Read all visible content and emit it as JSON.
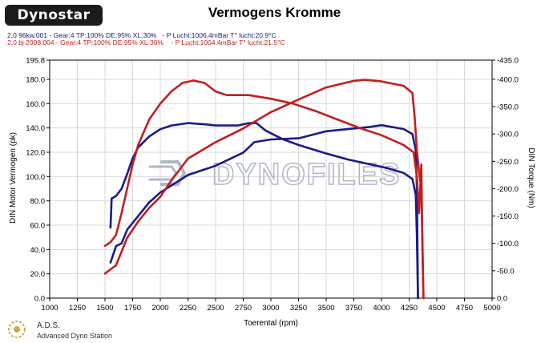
{
  "header": {
    "logo_text": "Dynostar",
    "title": "Vermogens Kromme",
    "run1": "2,0 96kw.001 - Gear:4 TP:100% DE:95% XL:30%   - P Lucht:1006.4mBar T° lucht:20.9°C",
    "run2": "2,0 bj 2008.004 - Gear:4 TP:100% DE:95% XL:30%    - P Lucht:1004.4mBar T° lucht:21.5°C"
  },
  "footer": {
    "line1": "A.D.S.",
    "line2": "Advanced Dyno Station"
  },
  "watermark": "DYNOFILES",
  "colors": {
    "run1": "#1a1a8a",
    "run2": "#c41e1e",
    "grid": "#d8d8d8",
    "watermark": "#b0b6c8"
  },
  "chart_data": {
    "type": "line",
    "title": "Vermogens Kromme",
    "xlabel": "Toerental (rpm)",
    "ylabel": "DIN Motor Vermogen (pk)",
    "y2label": "DIN Torque (Nm)",
    "xlim": [
      1000,
      5000
    ],
    "ylim": [
      0,
      195.8
    ],
    "y2lim": [
      0,
      435
    ],
    "x_ticks": [
      "1000",
      "1250",
      "1500",
      "1750",
      "2000",
      "2250",
      "2500",
      "2750",
      "3000",
      "3250",
      "3500",
      "3750",
      "4000",
      "4250",
      "4500",
      "4750",
      "5000"
    ],
    "y_ticks": [
      "0.0",
      "20.0",
      "40.0",
      "60.0",
      "80.0",
      "100.0",
      "120.0",
      "140.0",
      "160.0",
      "180.0",
      "195.8"
    ],
    "y2_ticks": [
      "0.0",
      "-50.0",
      "-100.0",
      "-150.0",
      "-200.0",
      "-250.0",
      "-300.0",
      "-350.0",
      "-400.0",
      "-435.0"
    ],
    "grid": true,
    "series": [
      {
        "name": "2,0 96kw.001",
        "quantity": "power",
        "axis": "left",
        "color": "#1a1a8a",
        "points": [
          [
            1550,
            58
          ],
          [
            1560,
            82
          ],
          [
            1600,
            84
          ],
          [
            1650,
            90
          ],
          [
            1700,
            102
          ],
          [
            1750,
            115
          ],
          [
            1800,
            124
          ],
          [
            1900,
            133
          ],
          [
            2000,
            139
          ],
          [
            2100,
            142
          ],
          [
            2250,
            144
          ],
          [
            2400,
            143
          ],
          [
            2500,
            142
          ],
          [
            2600,
            142
          ],
          [
            2700,
            142
          ],
          [
            2800,
            144
          ],
          [
            2870,
            144
          ],
          [
            2950,
            138
          ],
          [
            3100,
            131
          ],
          [
            3250,
            126
          ],
          [
            3500,
            119
          ],
          [
            3700,
            114
          ],
          [
            3900,
            110
          ],
          [
            4050,
            107
          ],
          [
            4200,
            103
          ],
          [
            4280,
            98
          ],
          [
            4310,
            85
          ],
          [
            4320,
            50
          ],
          [
            4330,
            0
          ]
        ]
      },
      {
        "name": "2,0 96kw.001",
        "quantity": "torque",
        "axis": "right",
        "color": "#1a1a8a",
        "points": [
          [
            1550,
            65
          ],
          [
            1600,
            95
          ],
          [
            1650,
            100
          ],
          [
            1700,
            125
          ],
          [
            1800,
            150
          ],
          [
            1900,
            175
          ],
          [
            2000,
            193
          ],
          [
            2250,
            225
          ],
          [
            2500,
            242
          ],
          [
            2750,
            266
          ],
          [
            2850,
            285
          ],
          [
            3000,
            290
          ],
          [
            3250,
            292
          ],
          [
            3500,
            305
          ],
          [
            3750,
            310
          ],
          [
            3900,
            313
          ],
          [
            4000,
            316
          ],
          [
            4200,
            309
          ],
          [
            4280,
            300
          ],
          [
            4310,
            270
          ],
          [
            4320,
            200
          ],
          [
            4330,
            0
          ]
        ]
      },
      {
        "name": "2,0 bj 2008.004",
        "quantity": "power",
        "axis": "left",
        "color": "#c41e1e",
        "points": [
          [
            1500,
            43
          ],
          [
            1550,
            46
          ],
          [
            1600,
            52
          ],
          [
            1650,
            70
          ],
          [
            1700,
            90
          ],
          [
            1750,
            110
          ],
          [
            1800,
            126
          ],
          [
            1900,
            147
          ],
          [
            2000,
            160
          ],
          [
            2100,
            170
          ],
          [
            2200,
            177
          ],
          [
            2300,
            179
          ],
          [
            2400,
            177
          ],
          [
            2500,
            170
          ],
          [
            2600,
            167
          ],
          [
            2700,
            167
          ],
          [
            2800,
            167
          ],
          [
            3000,
            164
          ],
          [
            3200,
            160
          ],
          [
            3400,
            154
          ],
          [
            3600,
            147
          ],
          [
            3800,
            140
          ],
          [
            4000,
            134
          ],
          [
            4200,
            126
          ],
          [
            4290,
            120
          ],
          [
            4320,
            100
          ],
          [
            4340,
            70
          ],
          [
            4360,
            110
          ],
          [
            4370,
            40
          ],
          [
            4380,
            0
          ]
        ]
      },
      {
        "name": "2,0 bj 2008.004",
        "quantity": "torque",
        "axis": "right",
        "color": "#c41e1e",
        "points": [
          [
            1500,
            45
          ],
          [
            1600,
            60
          ],
          [
            1700,
            110
          ],
          [
            1800,
            140
          ],
          [
            1900,
            165
          ],
          [
            2000,
            185
          ],
          [
            2100,
            215
          ],
          [
            2250,
            255
          ],
          [
            2500,
            285
          ],
          [
            2750,
            310
          ],
          [
            3000,
            340
          ],
          [
            3250,
            363
          ],
          [
            3500,
            385
          ],
          [
            3750,
            397
          ],
          [
            3850,
            399
          ],
          [
            4000,
            396
          ],
          [
            4200,
            388
          ],
          [
            4280,
            375
          ],
          [
            4300,
            330
          ],
          [
            4320,
            270
          ],
          [
            4340,
            230
          ],
          [
            4360,
            200
          ],
          [
            4370,
            100
          ],
          [
            4380,
            0
          ]
        ]
      }
    ]
  }
}
